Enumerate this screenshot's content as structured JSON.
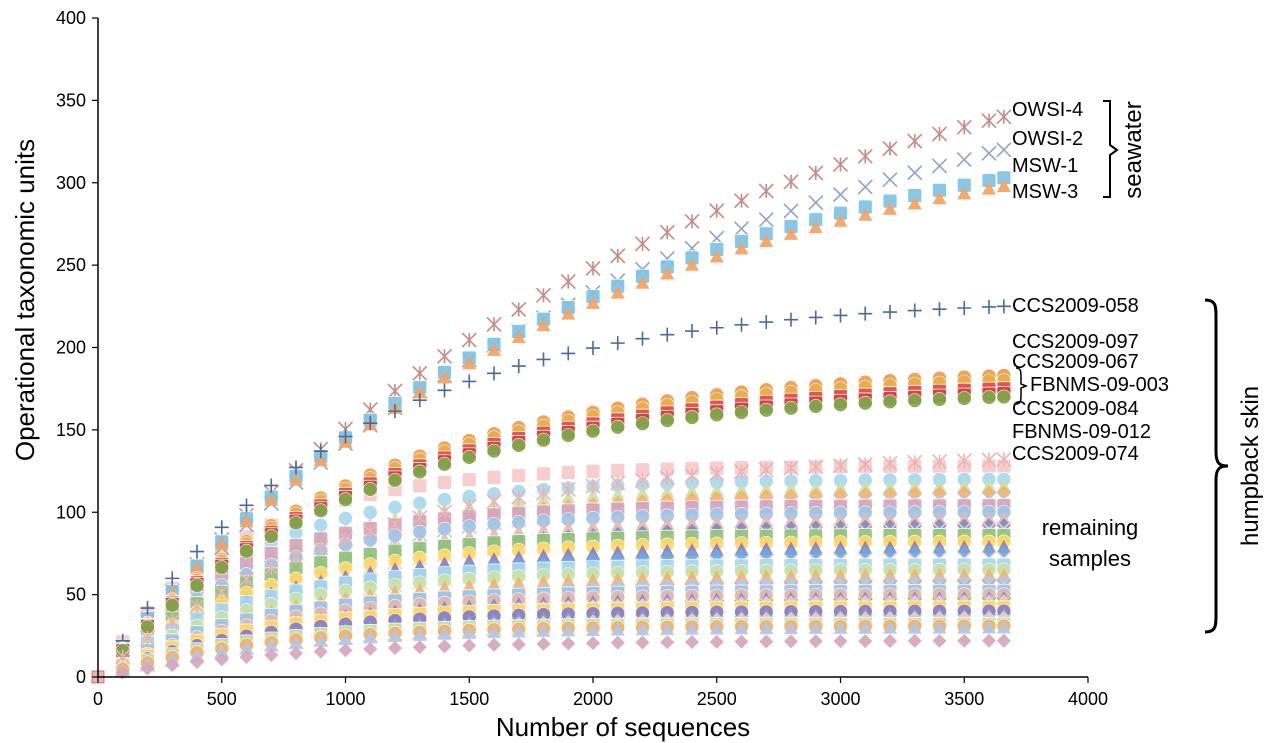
{
  "chart_data": {
    "type": "scatter",
    "title": "",
    "xlabel": "Number of sequences",
    "ylabel": "Operational taxonomic units",
    "xlim": [
      0,
      4000
    ],
    "ylim": [
      0,
      400
    ],
    "x_ticks": [
      "0",
      "500",
      "1000",
      "1500",
      "2000",
      "2500",
      "3000",
      "3500",
      "4000"
    ],
    "y_ticks": [
      "0",
      "50",
      "100",
      "150",
      "200",
      "250",
      "300",
      "350",
      "400"
    ],
    "grid": false,
    "legend": "none",
    "x": [
      0,
      100,
      200,
      300,
      400,
      500,
      600,
      700,
      800,
      900,
      1000,
      1100,
      1200,
      1300,
      1400,
      1500,
      1600,
      1700,
      1800,
      1900,
      2000,
      2100,
      2200,
      2300,
      2400,
      2500,
      2600,
      2700,
      2800,
      2900,
      3000,
      3100,
      3200,
      3300,
      3400,
      3500,
      3600,
      3660
    ],
    "series": [
      {
        "name": "OWSI-4",
        "group": "seawater",
        "marker": "asterisk",
        "color": "#c98a86",
        "final": 340
      },
      {
        "name": "OWSI-2",
        "group": "seawater",
        "marker": "x",
        "color": "#8fa3cc",
        "final": 320
      },
      {
        "name": "MSW-1",
        "group": "seawater",
        "marker": "square",
        "color": "#7fc3e6",
        "final": 303
      },
      {
        "name": "MSW-3",
        "group": "seawater",
        "marker": "triangle",
        "color": "#f4a261",
        "final": 298
      },
      {
        "name": "CCS2009-058",
        "group": "humpback skin",
        "marker": "plus",
        "color": "#4a6a9c",
        "final": 225
      },
      {
        "name": "CCS2009-097",
        "group": "humpback skin",
        "marker": "circle",
        "color": "#f09a4a",
        "final": 183
      },
      {
        "name": "CCS2009-067",
        "group": "humpback skin",
        "marker": "circle",
        "color": "#e9b04a",
        "final": 180
      },
      {
        "name": "FBNMS-09-003",
        "group": "humpback skin",
        "marker": "square",
        "color": "#e05050",
        "final": 175
      },
      {
        "name": "CCS2009-084",
        "group": "humpback skin",
        "marker": "square",
        "color": "#d94040",
        "final": 172
      },
      {
        "name": "FBNMS-09-012",
        "group": "humpback skin",
        "marker": "circle",
        "color": "#7fa84a",
        "final": 170
      },
      {
        "name": "CCS2009-074",
        "group": "humpback skin",
        "marker": "asterisk",
        "color": "#eab4b4",
        "final": 132
      }
    ],
    "remaining_samples_final": [
      128,
      120,
      116,
      112,
      108,
      104,
      100,
      96,
      92,
      90,
      86,
      82,
      79,
      76,
      72,
      68,
      65,
      62,
      58,
      55,
      52,
      50,
      48,
      46,
      44,
      42,
      40,
      38,
      36,
      34,
      32,
      31,
      30,
      22
    ],
    "remaining_palette": [
      "#f7c9c9",
      "#a8d8ef",
      "#c9e2a8",
      "#f6b26b",
      "#b4c7e7",
      "#d5a6bd",
      "#9fc5e8",
      "#e6b8af",
      "#7d8cc4",
      "#f4cccc",
      "#93c47d",
      "#ffd966",
      "#8e7cc3",
      "#6fa8dc"
    ],
    "annotations": {
      "seawater": "seawater",
      "humpback_skin": "humpback skin",
      "remaining": [
        "remaining",
        "samples"
      ]
    }
  }
}
